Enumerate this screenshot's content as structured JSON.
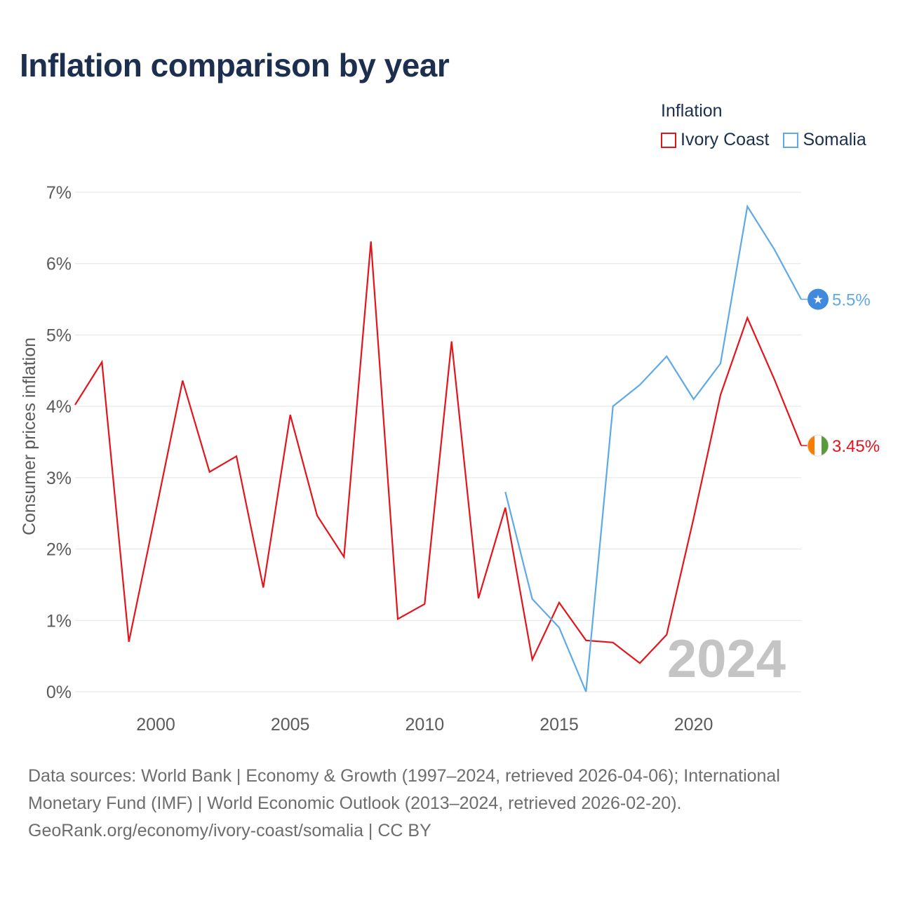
{
  "title": "Inflation comparison by year",
  "legend": {
    "title": "Inflation",
    "items": [
      {
        "name": "Ivory Coast",
        "color": "#e3141b"
      },
      {
        "name": "Somalia",
        "color": "#5ea9e6"
      }
    ]
  },
  "chart_data": {
    "type": "line",
    "title": "Inflation comparison by year",
    "xlabel": "",
    "ylabel": "Consumer prices inflation",
    "xlim": [
      1997,
      2024
    ],
    "ylim": [
      0,
      7
    ],
    "xticks": [
      2000,
      2005,
      2010,
      2015,
      2020
    ],
    "yticks": [
      0,
      1,
      2,
      3,
      4,
      5,
      6,
      7
    ],
    "ytick_suffix": "%",
    "grid": true,
    "year_watermark": "2024",
    "series": [
      {
        "name": "Ivory Coast",
        "color": "#e3141b",
        "end_label": "3.45%",
        "x": [
          1997,
          1998,
          1999,
          2000,
          2001,
          2002,
          2003,
          2004,
          2005,
          2006,
          2007,
          2008,
          2009,
          2010,
          2011,
          2012,
          2013,
          2014,
          2015,
          2016,
          2017,
          2018,
          2019,
          2020,
          2021,
          2022,
          2023,
          2024
        ],
        "values": [
          4.02,
          4.62,
          0.7,
          2.52,
          4.36,
          3.08,
          3.3,
          1.46,
          3.88,
          2.47,
          1.89,
          6.31,
          1.02,
          1.23,
          4.91,
          1.31,
          2.58,
          0.45,
          1.25,
          0.72,
          0.69,
          0.4,
          0.8,
          2.43,
          4.16,
          5.24,
          4.38,
          3.45
        ]
      },
      {
        "name": "Somalia",
        "color": "#5ea9e6",
        "end_label": "5.5%",
        "x": [
          2013,
          2014,
          2015,
          2016,
          2017,
          2018,
          2019,
          2020,
          2021,
          2022,
          2023,
          2024
        ],
        "values": [
          2.8,
          1.3,
          0.9,
          0.0,
          4.0,
          4.3,
          4.7,
          4.1,
          4.6,
          6.8,
          6.2,
          5.5
        ]
      }
    ]
  },
  "footer": {
    "line1": "Data sources: World Bank | Economy & Growth (1997–2024, retrieved 2026-04-06); International",
    "line2": "Monetary Fund (IMF) | World Economic Outlook (2013–2024, retrieved 2026-02-20).",
    "line3": "GeoRank.org/economy/ivory-coast/somalia | CC BY"
  }
}
